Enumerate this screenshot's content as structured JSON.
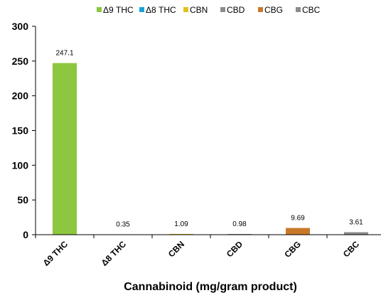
{
  "chart_data": {
    "type": "bar",
    "categories": [
      "Δ9 THC",
      "Δ8 THC",
      "CBN",
      "CBD",
      "CBG",
      "CBC"
    ],
    "values": [
      247.1,
      0.35,
      1.09,
      0.98,
      9.69,
      3.61
    ],
    "data_labels": [
      "247.1",
      "0.35",
      "1.09",
      "0.98",
      "9.69",
      "3.61"
    ],
    "colors": [
      "#8DC63F",
      "#1BA1D8",
      "#E3C21D",
      "#8A8F8A",
      "#C8782A",
      "#8C8C8C"
    ],
    "legend": [
      "Δ9 THC",
      "Δ8 THC",
      "CBN",
      "CBD",
      "CBG",
      "CBC"
    ],
    "legend_position": "top",
    "title": "",
    "xlabel": "Cannabinoid (mg/gram product)",
    "ylabel": "",
    "ylim": [
      0,
      300
    ],
    "yticks": [
      "0",
      "50",
      "100",
      "150",
      "200",
      "250",
      "300"
    ],
    "grid": false
  }
}
